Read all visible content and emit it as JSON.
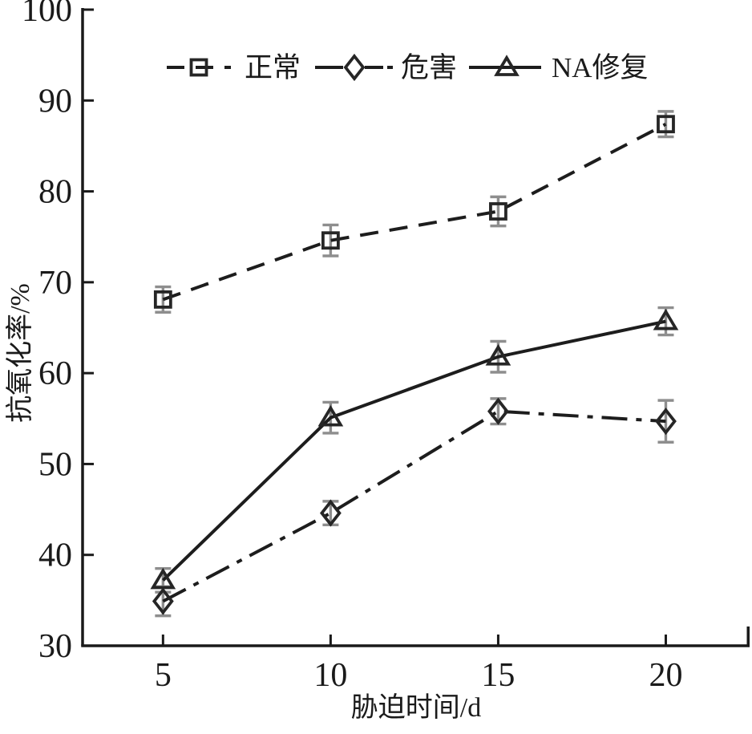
{
  "chart_data": {
    "type": "line",
    "title": "",
    "xlabel": "胁迫时间/d",
    "ylabel": "抗氧化率/%",
    "x": [
      5,
      10,
      15,
      20
    ],
    "x_ticks": [
      5,
      10,
      15,
      20
    ],
    "y_ticks": [
      30,
      40,
      50,
      60,
      70,
      80,
      90,
      100
    ],
    "xlim": [
      2.6,
      22.5
    ],
    "ylim": [
      30,
      100
    ],
    "grid": false,
    "legend_position": "top-inside",
    "series": [
      {
        "name": "正常",
        "marker": "square",
        "line_style": "dashed",
        "values": [
          68.1,
          74.6,
          77.8,
          87.4
        ],
        "errors": [
          1.4,
          1.7,
          1.6,
          1.4
        ]
      },
      {
        "name": "危害",
        "marker": "diamond",
        "line_style": "dash-dot",
        "values": [
          34.9,
          44.6,
          55.8,
          54.7
        ],
        "errors": [
          1.6,
          1.3,
          1.4,
          2.3
        ]
      },
      {
        "name": "NA修复",
        "marker": "triangle",
        "line_style": "solid",
        "values": [
          37.2,
          55.1,
          61.8,
          65.7
        ],
        "errors": [
          1.3,
          1.7,
          1.7,
          1.5
        ]
      }
    ],
    "colors": {
      "line": "#1d1d1d",
      "marker_stroke": "#262626",
      "marker_fill": "none",
      "error_bar": "#8e8e8e",
      "axis": "#1a1a1a",
      "text": "#1a1a1a",
      "background": "#ffffff"
    }
  }
}
